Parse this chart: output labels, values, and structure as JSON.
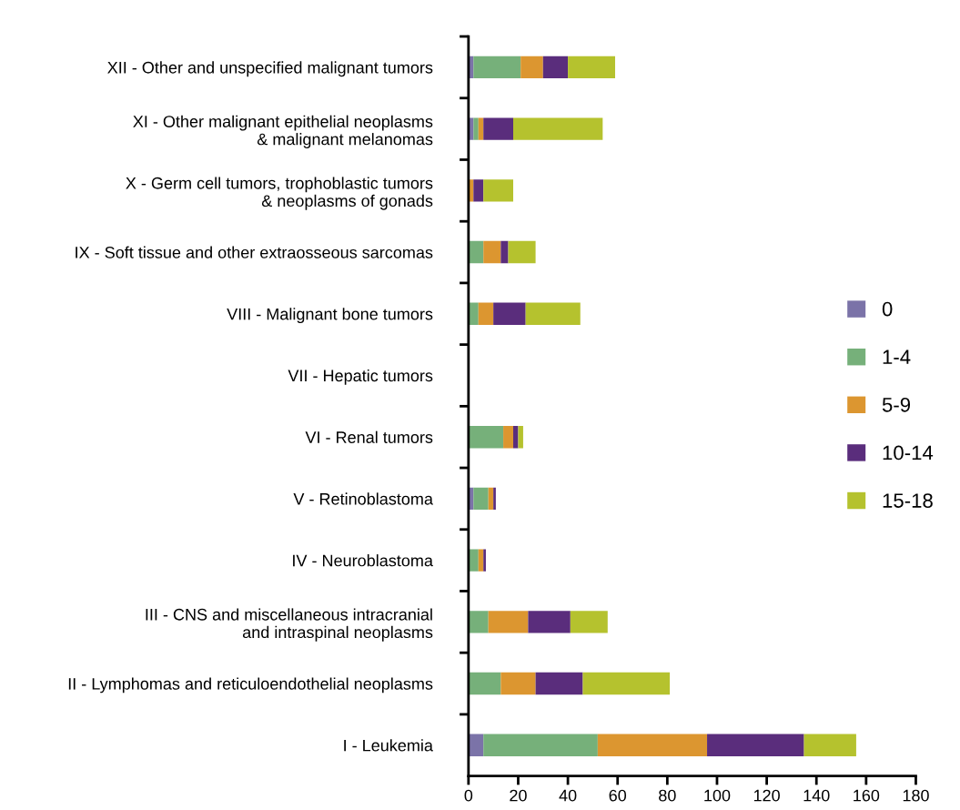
{
  "chart_data": {
    "type": "bar",
    "orientation": "horizontal",
    "stacked": true,
    "legend": "right",
    "grid": false,
    "categories": [
      "XII - Other and unspecified malignant tumors",
      "XI - Other malignant epithelial neoplasms\n& malignant melanomas",
      "X - Germ cell tumors, trophoblastic tumors\n& neoplasms of gonads",
      "IX - Soft tissue and other extraosseous sarcomas",
      "VIII - Malignant bone tumors",
      "VII - Hepatic tumors",
      "VI - Renal tumors",
      "V - Retinoblastoma",
      "IV - Neuroblastoma",
      "III - CNS and miscellaneous intracranial\nand intraspinal neoplasms",
      "II - Lymphomas and reticuloendothelial neoplasms",
      "I - Leukemia"
    ],
    "series": [
      {
        "name": "0",
        "color": "#7b73a8",
        "values": [
          2,
          2,
          0,
          0,
          0,
          0,
          0,
          2,
          0,
          0,
          0,
          6
        ]
      },
      {
        "name": "1-4",
        "color": "#76b07a",
        "values": [
          19,
          2,
          0,
          6,
          4,
          0,
          14,
          6,
          4,
          8,
          13,
          46
        ]
      },
      {
        "name": "5-9",
        "color": "#dc9630",
        "values": [
          9,
          2,
          2,
          7,
          6,
          0,
          4,
          2,
          2,
          16,
          14,
          44
        ]
      },
      {
        "name": "10-14",
        "color": "#5a2d7c",
        "values": [
          10,
          12,
          4,
          3,
          13,
          0,
          2,
          1,
          1,
          17,
          19,
          39
        ]
      },
      {
        "name": "15-18",
        "color": "#b5c22e",
        "values": [
          19,
          36,
          12,
          11,
          22,
          0,
          2,
          0,
          0,
          15,
          35,
          21
        ]
      }
    ],
    "xlim": [
      0,
      180
    ],
    "xticks": [
      0,
      20,
      40,
      60,
      80,
      100,
      120,
      140,
      160,
      180
    ]
  }
}
